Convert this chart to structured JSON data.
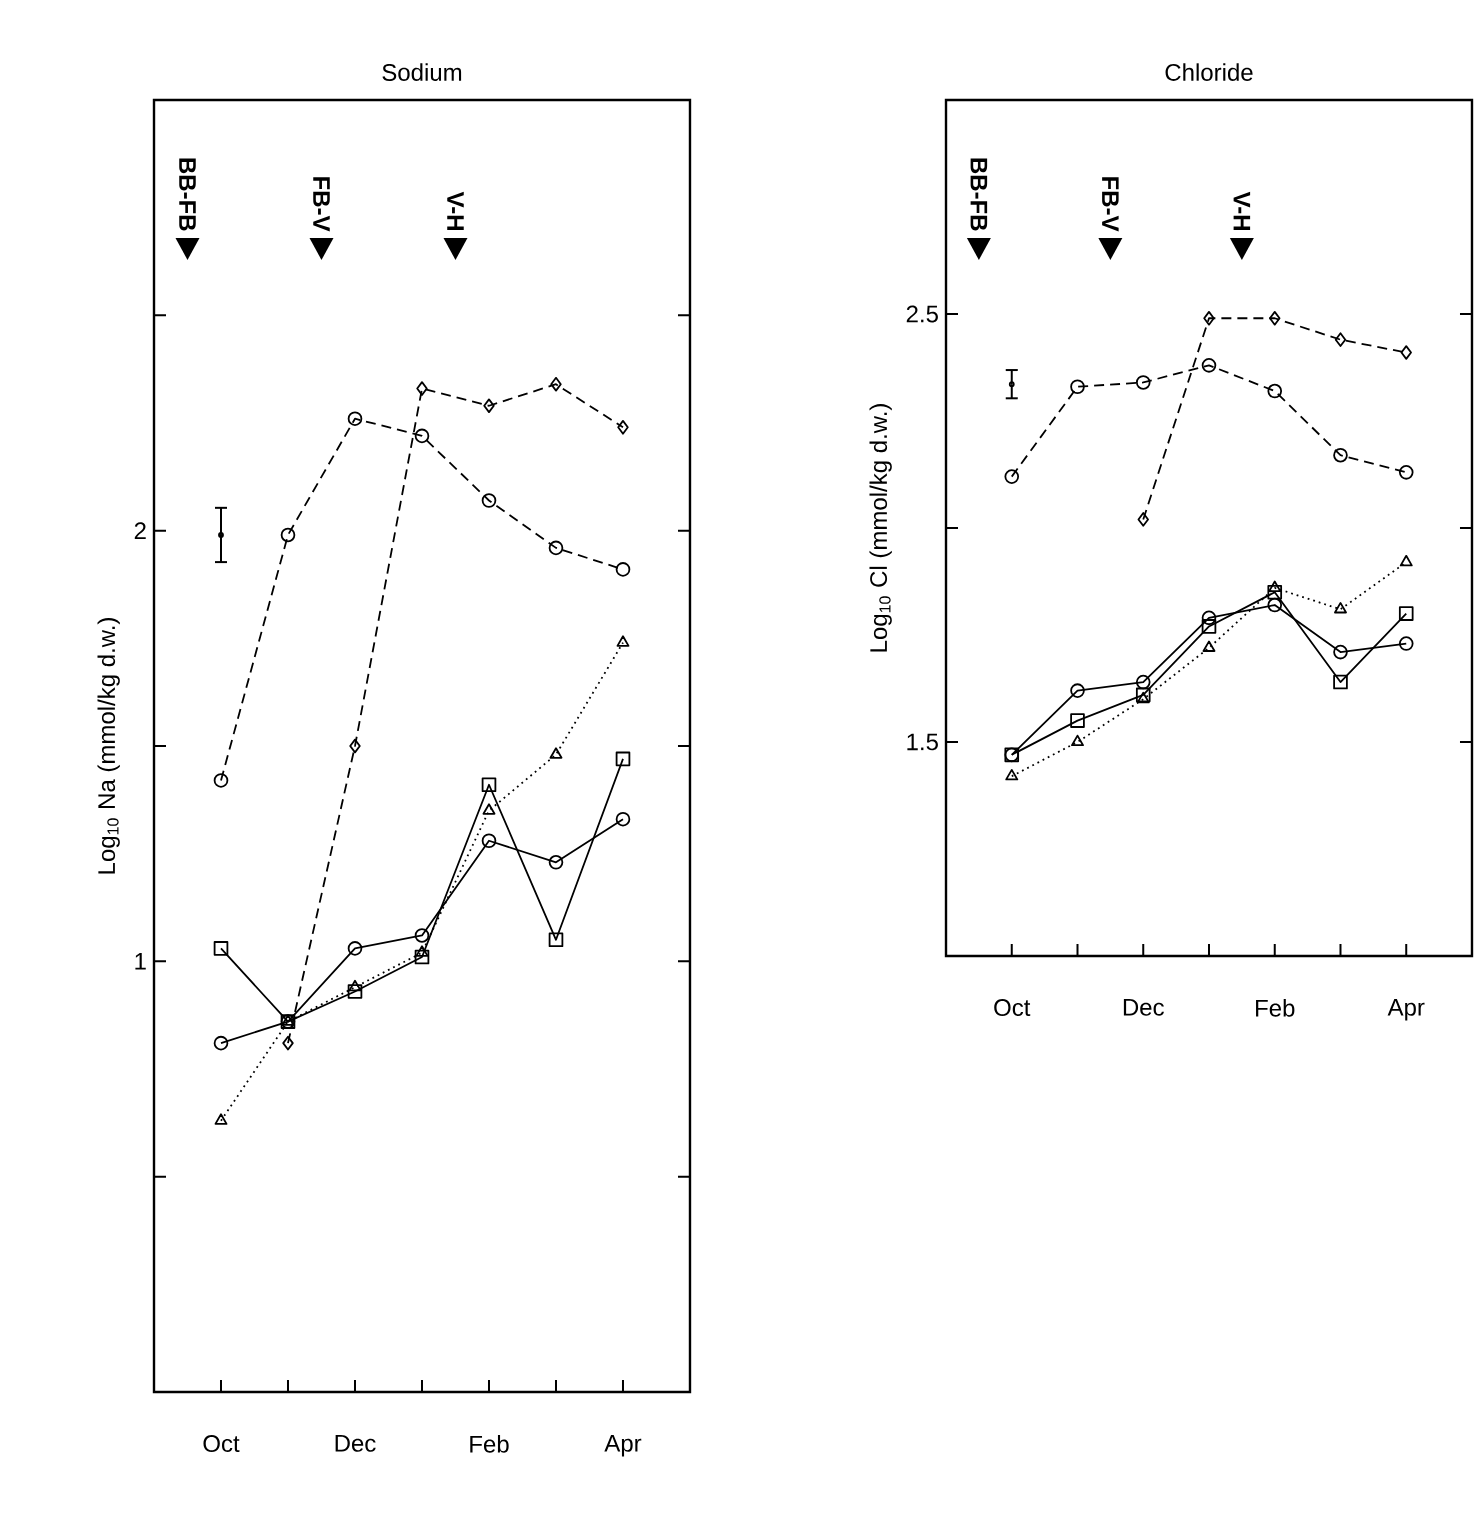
{
  "chart_data": [
    {
      "type": "line",
      "title": "Sodium",
      "ylabel": "Log$_{10}$ Na (mmol/kg d.w.)",
      "categories": [
        "Oct",
        null,
        "Dec",
        null,
        "Feb",
        null,
        "Apr"
      ],
      "ylim": [
        0,
        3
      ],
      "yticks": [
        {
          "value": 0.5,
          "label": null
        },
        1,
        {
          "value": 1.5,
          "label": null
        },
        2,
        {
          "value": 2.5,
          "label": null
        }
      ],
      "series": [
        {
          "color": "#000000",
          "marker": "circle",
          "line_style": "dashed",
          "values": [
            1.42,
            1.99,
            2.26,
            2.22,
            2.07,
            1.96,
            1.91
          ]
        },
        {
          "color": "#000000",
          "marker": "diamond",
          "line_style": "dashed",
          "values": [
            null,
            0.81,
            1.5,
            2.33,
            2.29,
            2.34,
            2.24
          ]
        },
        {
          "color": "#000000",
          "marker": "circle",
          "line_style": "solid",
          "values": [
            0.81,
            0.86,
            1.03,
            1.06,
            1.28,
            1.23,
            1.33
          ]
        },
        {
          "color": "#000000",
          "marker": "square",
          "line_style": "solid",
          "values": [
            1.03,
            0.86,
            0.93,
            1.01,
            1.41,
            1.05,
            1.47
          ]
        },
        {
          "color": "#000000",
          "marker": "triangle",
          "line_style": "dotted",
          "values": [
            0.63,
            0.86,
            0.94,
            1.02,
            1.35,
            1.48,
            1.74
          ]
        },
        {
          "type": "scatter",
          "color": "#000000",
          "marker": "circle",
          "values": [
            1.99,
            null,
            null,
            null,
            null,
            null,
            null
          ],
          "errors": [
            0.063,
            null,
            null,
            null,
            null,
            null,
            null
          ]
        }
      ],
      "annotations": [
        "BB-FB",
        "FB-V",
        "V-H"
      ]
    },
    {
      "type": "line",
      "title": "Chloride",
      "ylabel": "Log$_{10}$ Cl (mmol/kg d.w.)",
      "categories": [
        "Oct",
        null,
        "Dec",
        null,
        "Feb",
        null,
        "Apr"
      ],
      "ylim": [
        1,
        3
      ],
      "yticks": [
        1.5,
        {
          "value": 2,
          "label": null
        },
        2.5
      ],
      "series": [
        {
          "color": "#000000",
          "marker": "circle",
          "line_style": "dashed",
          "values": [
            2.12,
            2.33,
            2.34,
            2.38,
            2.32,
            2.17,
            2.13
          ]
        },
        {
          "color": "#000000",
          "marker": "diamond",
          "line_style": "dashed",
          "values": [
            null,
            null,
            2.02,
            2.49,
            2.49,
            2.44,
            2.41
          ]
        },
        {
          "color": "#000000",
          "marker": "circle",
          "line_style": "solid",
          "values": [
            1.47,
            1.62,
            1.64,
            1.79,
            1.82,
            1.71,
            1.73
          ]
        },
        {
          "color": "#000000",
          "marker": "square",
          "line_style": "solid",
          "values": [
            1.47,
            1.55,
            1.61,
            1.77,
            1.85,
            1.64,
            1.8
          ]
        },
        {
          "color": "#000000",
          "marker": "triangle",
          "line_style": "dotted",
          "values": [
            1.42,
            1.5,
            1.6,
            1.72,
            1.86,
            1.81,
            1.92
          ]
        },
        {
          "type": "scatter",
          "color": "#000000",
          "marker": "circle",
          "values": [
            2.336,
            null,
            null,
            null,
            null,
            null,
            null
          ],
          "errors": [
            0.033,
            null,
            null,
            null,
            null,
            null,
            null
          ]
        }
      ],
      "annotations": [
        "BB-FB",
        "FB-V",
        "V-H"
      ]
    }
  ]
}
